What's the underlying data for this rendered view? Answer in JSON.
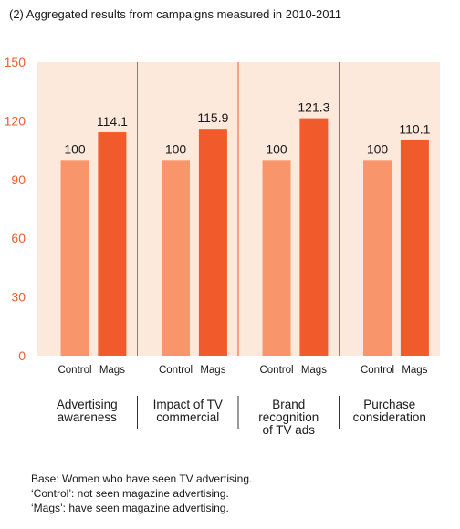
{
  "note": "(2) Aggregated results from campaigns measured in 2010-2011",
  "chart_data": {
    "type": "bar",
    "title": "",
    "xlabel": "",
    "ylabel": "",
    "ylim": [
      0,
      150
    ],
    "yticks": [
      "0",
      "30",
      "60",
      "90",
      "120",
      "150"
    ],
    "grid": false,
    "categories": [
      "Advertising awareness",
      "Impact of TV commercial",
      "Brand recognition of TV ads",
      "Purchase consideration"
    ],
    "category_labels": [
      [
        "Advertising",
        "awareness"
      ],
      [
        "Impact of TV",
        "commercial"
      ],
      [
        "Brand",
        "recognition",
        "of TV ads"
      ],
      [
        "Purchase",
        "consideration"
      ]
    ],
    "series": [
      {
        "name": "Control",
        "values": [
          100,
          100,
          100,
          100
        ],
        "labels": [
          "100",
          "100",
          "100",
          "100"
        ],
        "color": "#f9956a"
      },
      {
        "name": "Mags",
        "values": [
          114.1,
          115.9,
          121.3,
          110.1
        ],
        "labels": [
          "114.1",
          "115.9",
          "121.3",
          "110.1"
        ],
        "color": "#f15a2b"
      }
    ],
    "axis_color": "#e8602c",
    "background": "#fde8dc",
    "divider_color": "#f15a2b"
  },
  "footnotes": [
    "Base: Women who have seen TV advertising.",
    "‘Control’: not seen magazine advertising.",
    "‘Mags’: have seen magazine advertising."
  ]
}
